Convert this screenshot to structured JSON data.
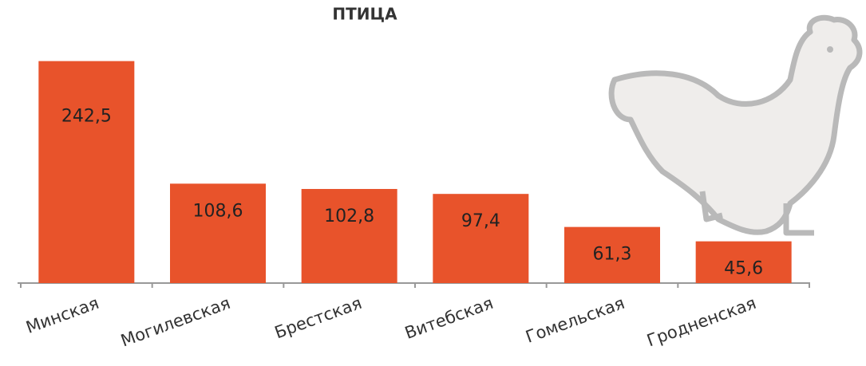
{
  "chart_data": {
    "type": "bar",
    "title": "ПТИЦА",
    "categories": [
      "Минская",
      "Могилевская",
      "Брестская",
      "Витебская",
      "Гомельская",
      "Гродненская"
    ],
    "values": [
      242.5,
      108.6,
      102.8,
      97.4,
      61.3,
      45.6
    ],
    "value_labels": [
      "242,5",
      "108,6",
      "102,8",
      "97,4",
      "61,3",
      "45,6"
    ],
    "color": "#e8532b",
    "ylim": [
      0,
      250
    ]
  }
}
